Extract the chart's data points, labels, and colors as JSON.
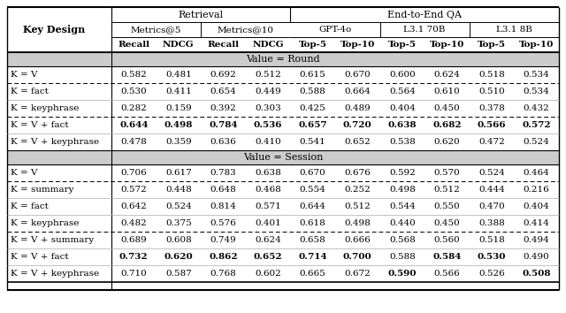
{
  "section1_label": "Value = Round",
  "section2_label": "Value = Session",
  "round_rows": [
    {
      "key": "K = V",
      "vals": [
        "0.582",
        "0.481",
        "0.692",
        "0.512",
        "0.615",
        "0.670",
        "0.600",
        "0.624",
        "0.518",
        "0.534"
      ],
      "bold": [
        false,
        false,
        false,
        false,
        false,
        false,
        false,
        false,
        false,
        false
      ],
      "dashed_below": true
    },
    {
      "key": "K = fact",
      "vals": [
        "0.530",
        "0.411",
        "0.654",
        "0.449",
        "0.588",
        "0.664",
        "0.564",
        "0.610",
        "0.510",
        "0.534"
      ],
      "bold": [
        false,
        false,
        false,
        false,
        false,
        false,
        false,
        false,
        false,
        false
      ],
      "dashed_below": false
    },
    {
      "key": "K = keyphrase",
      "vals": [
        "0.282",
        "0.159",
        "0.392",
        "0.303",
        "0.425",
        "0.489",
        "0.404",
        "0.450",
        "0.378",
        "0.432"
      ],
      "bold": [
        false,
        false,
        false,
        false,
        false,
        false,
        false,
        false,
        false,
        false
      ],
      "dashed_below": true
    },
    {
      "key": "K = V + fact",
      "vals": [
        "0.644",
        "0.498",
        "0.784",
        "0.536",
        "0.657",
        "0.720",
        "0.638",
        "0.682",
        "0.566",
        "0.572"
      ],
      "bold": [
        true,
        true,
        true,
        true,
        true,
        true,
        true,
        true,
        true,
        true
      ],
      "dashed_below": false
    },
    {
      "key": "K = V + keyphrase",
      "vals": [
        "0.478",
        "0.359",
        "0.636",
        "0.410",
        "0.541",
        "0.652",
        "0.538",
        "0.620",
        "0.472",
        "0.524"
      ],
      "bold": [
        false,
        false,
        false,
        false,
        false,
        false,
        false,
        false,
        false,
        false
      ],
      "dashed_below": false
    }
  ],
  "session_rows": [
    {
      "key": "K = V",
      "vals": [
        "0.706",
        "0.617",
        "0.783",
        "0.638",
        "0.670",
        "0.676",
        "0.592",
        "0.570",
        "0.524",
        "0.464"
      ],
      "bold": [
        false,
        false,
        false,
        false,
        false,
        false,
        false,
        false,
        false,
        false
      ],
      "dashed_below": true
    },
    {
      "key": "K = summary",
      "vals": [
        "0.572",
        "0.448",
        "0.648",
        "0.468",
        "0.554",
        "0.252",
        "0.498",
        "0.512",
        "0.444",
        "0.216"
      ],
      "bold": [
        false,
        false,
        false,
        false,
        false,
        false,
        false,
        false,
        false,
        false
      ],
      "dashed_below": false
    },
    {
      "key": "K = fact",
      "vals": [
        "0.642",
        "0.524",
        "0.814",
        "0.571",
        "0.644",
        "0.512",
        "0.544",
        "0.550",
        "0.470",
        "0.404"
      ],
      "bold": [
        false,
        false,
        false,
        false,
        false,
        false,
        false,
        false,
        false,
        false
      ],
      "dashed_below": false
    },
    {
      "key": "K = keyphrase",
      "vals": [
        "0.482",
        "0.375",
        "0.576",
        "0.401",
        "0.618",
        "0.498",
        "0.440",
        "0.450",
        "0.388",
        "0.414"
      ],
      "bold": [
        false,
        false,
        false,
        false,
        false,
        false,
        false,
        false,
        false,
        false
      ],
      "dashed_below": true
    },
    {
      "key": "K = V + summary",
      "vals": [
        "0.689",
        "0.608",
        "0.749",
        "0.624",
        "0.658",
        "0.666",
        "0.568",
        "0.560",
        "0.518",
        "0.494"
      ],
      "bold": [
        false,
        false,
        false,
        false,
        false,
        false,
        false,
        false,
        false,
        false
      ],
      "dashed_below": false
    },
    {
      "key": "K = V + fact",
      "vals": [
        "0.732",
        "0.620",
        "0.862",
        "0.652",
        "0.714",
        "0.700",
        "0.588",
        "0.584",
        "0.530",
        "0.490"
      ],
      "bold": [
        true,
        true,
        true,
        true,
        true,
        true,
        false,
        true,
        true,
        false
      ],
      "dashed_below": false
    },
    {
      "key": "K = V + keyphrase",
      "vals": [
        "0.710",
        "0.587",
        "0.768",
        "0.602",
        "0.665",
        "0.672",
        "0.590",
        "0.566",
        "0.526",
        "0.508"
      ],
      "bold": [
        false,
        false,
        false,
        false,
        false,
        false,
        true,
        false,
        false,
        true
      ],
      "dashed_below": false
    }
  ],
  "bg_color": "#e8e8e8",
  "section_bg": "#d4d4d4"
}
